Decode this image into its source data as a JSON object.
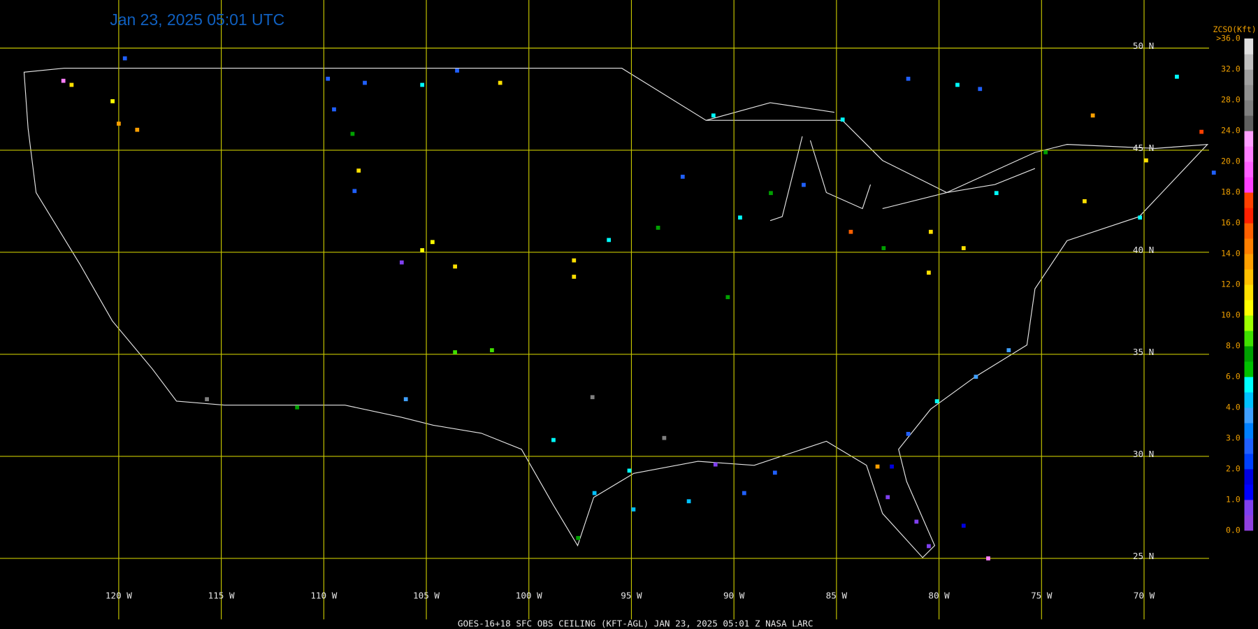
{
  "title": "Jan 23, 2025 05:01 UTC",
  "footer": "GOES-16+18  SFC OBS CEILING (KFT-AGL)   JAN 23, 2025 05:01 Z   NASA LARC",
  "grid_color": "#c8c800",
  "lon_ticks": [
    {
      "value": -120,
      "label": "120 W"
    },
    {
      "value": -115,
      "label": "115 W"
    },
    {
      "value": -110,
      "label": "110 W"
    },
    {
      "value": -105,
      "label": "105 W"
    },
    {
      "value": -100,
      "label": "100 W"
    },
    {
      "value": -95,
      "label": "95 W"
    },
    {
      "value": -90,
      "label": "90 W"
    },
    {
      "value": -85,
      "label": "85 W"
    },
    {
      "value": -80,
      "label": "80 W"
    },
    {
      "value": -75,
      "label": "75 W"
    },
    {
      "value": -70,
      "label": "70 W"
    }
  ],
  "lat_ticks": [
    {
      "value": 50,
      "label": "50 N"
    },
    {
      "value": 45,
      "label": "45 N"
    },
    {
      "value": 40,
      "label": "40 N"
    },
    {
      "value": 35,
      "label": "35 N"
    },
    {
      "value": 30,
      "label": "30 N"
    },
    {
      "value": 25,
      "label": "25 N"
    }
  ],
  "legend": {
    "title": "ZCSO(Kft)",
    "ticks": [
      {
        "value": 0,
        "label": "0.0"
      },
      {
        "value": 1,
        "label": "1.0"
      },
      {
        "value": 2,
        "label": "2.0"
      },
      {
        "value": 3,
        "label": "3.0"
      },
      {
        "value": 4,
        "label": "4.0"
      },
      {
        "value": 6,
        "label": "6.0"
      },
      {
        "value": 8,
        "label": "8.0"
      },
      {
        "value": 10,
        "label": "10.0"
      },
      {
        "value": 12,
        "label": "12.0"
      },
      {
        "value": 14,
        "label": "14.0"
      },
      {
        "value": 16,
        "label": "16.0"
      },
      {
        "value": 18,
        "label": "18.0"
      },
      {
        "value": 20,
        "label": "20.0"
      },
      {
        "value": 24,
        "label": "24.0"
      },
      {
        "value": 28,
        "label": "28.0"
      },
      {
        "value": 32,
        "label": "32.0"
      },
      {
        "value": 36,
        "label": ">36.0"
      }
    ],
    "colors": [
      "#9040e0",
      "#8040f0",
      "#0000ff",
      "#0000e0",
      "#0040ff",
      "#2060ff",
      "#0080ff",
      "#40a0ff",
      "#00c0ff",
      "#00ffff",
      "#00c000",
      "#00a000",
      "#40e000",
      "#a0ff00",
      "#ffff00",
      "#ffe000",
      "#ffc000",
      "#ffa000",
      "#ff8000",
      "#ff6000",
      "#ff2000",
      "#ff4000",
      "#ff40ff",
      "#ff60ff",
      "#ff80ff",
      "#ffa0ff",
      "#606060",
      "#808080",
      "#909090",
      "#a0a0a0",
      "#c0c0c0",
      "#e0e0e0"
    ]
  },
  "stations": [
    [
      -119.7,
      49.5,
      2.5
    ],
    [
      -120.3,
      47.4,
      10.5
    ],
    [
      -120,
      46.3,
      13
    ],
    [
      -119.1,
      46,
      13
    ],
    [
      -109.8,
      48.5,
      2.5
    ],
    [
      -108,
      48.3,
      2.5
    ],
    [
      -105.2,
      48.2,
      5
    ],
    [
      -103.5,
      48.9,
      2.5
    ],
    [
      -101.4,
      48.3,
      11
    ],
    [
      -109.5,
      47,
      2.5
    ],
    [
      -108.6,
      45.8,
      7
    ],
    [
      -108.3,
      44,
      11
    ],
    [
      -108.5,
      43,
      2.5
    ],
    [
      -106.2,
      39.5,
      0.5
    ],
    [
      -105.2,
      40.1,
      10.5
    ],
    [
      -104.7,
      40.5,
      10.5
    ],
    [
      -103.6,
      39.3,
      11
    ],
    [
      -103.6,
      35.1,
      8
    ],
    [
      -101.8,
      35.2,
      8
    ],
    [
      -106,
      32.8,
      3.5
    ],
    [
      -111.3,
      32.4,
      7
    ],
    [
      -115.7,
      32.8,
      26
    ],
    [
      -98.8,
      30.8,
      5
    ],
    [
      -97.8,
      38.8,
      11
    ],
    [
      -97.8,
      39.6,
      11
    ],
    [
      -96.9,
      32.9,
      26
    ],
    [
      -96.1,
      40.6,
      5
    ],
    [
      -93.7,
      41.2,
      7
    ],
    [
      -92.5,
      43.7,
      2.5
    ],
    [
      -91,
      46.7,
      5
    ],
    [
      -89.7,
      41.7,
      5
    ],
    [
      -90.3,
      37.8,
      7
    ],
    [
      -88.2,
      42.9,
      7
    ],
    [
      -86.6,
      43.3,
      2.5
    ],
    [
      -84.7,
      46.5,
      5
    ],
    [
      -84.3,
      41,
      15
    ],
    [
      -82.7,
      40.2,
      7
    ],
    [
      -80.4,
      41,
      11
    ],
    [
      -78.8,
      40.2,
      11
    ],
    [
      -77.2,
      42.9,
      5
    ],
    [
      -74.8,
      44.9,
      7
    ],
    [
      -72.9,
      42.5,
      11
    ],
    [
      -70.2,
      41.7,
      5
    ],
    [
      -68.4,
      48.6,
      5
    ],
    [
      -79.1,
      48.2,
      5
    ],
    [
      -78,
      48,
      2.5
    ],
    [
      -81.5,
      48.5,
      2.5
    ],
    [
      -72.5,
      46.7,
      13
    ],
    [
      -69.9,
      44.5,
      11
    ],
    [
      -80.5,
      39,
      11
    ],
    [
      -76.6,
      35.2,
      3.5
    ],
    [
      -78.2,
      33.9,
      3.5
    ],
    [
      -80.1,
      32.7,
      5
    ],
    [
      -81.5,
      31.1,
      2.5
    ],
    [
      -82.3,
      29.5,
      1.5
    ],
    [
      -82.5,
      28,
      0.5
    ],
    [
      -81.1,
      26.8,
      0.5
    ],
    [
      -80.5,
      25.6,
      0.5
    ],
    [
      -78.8,
      26.6,
      1.5
    ],
    [
      -77.6,
      25,
      21
    ],
    [
      -89.5,
      28.2,
      2.5
    ],
    [
      -92.2,
      27.8,
      4.5
    ],
    [
      -94.9,
      27.4,
      4.5
    ],
    [
      -96.8,
      28.2,
      4.5
    ],
    [
      -97.6,
      26,
      7
    ],
    [
      -95.1,
      29.3,
      5
    ],
    [
      -90.9,
      29.6,
      0.5
    ],
    [
      -88,
      29.2,
      2.5
    ],
    [
      -93.4,
      30.9,
      26
    ],
    [
      -83,
      29.5,
      13
    ],
    [
      -66.6,
      43.9,
      2.5
    ],
    [
      -67.2,
      45.9,
      17
    ],
    [
      -122.7,
      48.4,
      21
    ],
    [
      -122.3,
      48.2,
      11
    ]
  ]
}
